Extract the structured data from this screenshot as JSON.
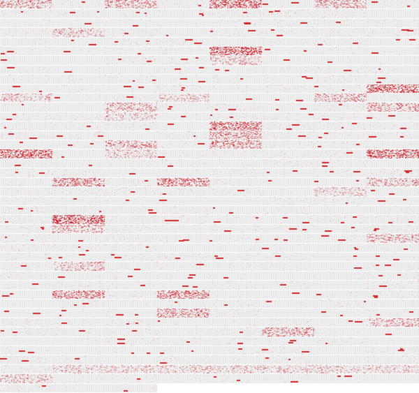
{
  "chart_data": {
    "type": "heatmap",
    "title": "",
    "grid": {
      "columns": 8,
      "rows": 42
    },
    "colors": {
      "background": "#e9e9e9",
      "stripe_light": "#f3f3f3",
      "row_gap": "#ffffff",
      "mark": "#d42a2a",
      "dense_mark": "#c40f1a"
    },
    "last_row_filled_columns": 3,
    "dense_blocks": [
      {
        "row": 0,
        "col": 0,
        "intensity": 0.5
      },
      {
        "row": 0,
        "col": 2,
        "intensity": 0.5
      },
      {
        "row": 0,
        "col": 4,
        "intensity": 0.8
      },
      {
        "row": 0,
        "col": 6,
        "intensity": 0.5
      },
      {
        "row": 3,
        "col": 1,
        "intensity": 0.35
      },
      {
        "row": 5,
        "col": 4,
        "intensity": 0.9
      },
      {
        "row": 6,
        "col": 4,
        "intensity": 0.35
      },
      {
        "row": 9,
        "col": 7,
        "intensity": 0.9
      },
      {
        "row": 10,
        "col": 0,
        "intensity": 0.35
      },
      {
        "row": 10,
        "col": 3,
        "intensity": 0.3
      },
      {
        "row": 10,
        "col": 6,
        "intensity": 0.5
      },
      {
        "row": 11,
        "col": 7,
        "intensity": 0.5
      },
      {
        "row": 11,
        "col": 2,
        "intensity": 0.45
      },
      {
        "row": 12,
        "col": 2,
        "intensity": 0.3
      },
      {
        "row": 13,
        "col": 4,
        "intensity": 0.8
      },
      {
        "row": 14,
        "col": 4,
        "intensity": 0.6
      },
      {
        "row": 15,
        "col": 2,
        "intensity": 0.5
      },
      {
        "row": 15,
        "col": 4,
        "intensity": 0.6
      },
      {
        "row": 16,
        "col": 2,
        "intensity": 0.3
      },
      {
        "row": 16,
        "col": 0,
        "intensity": 0.9
      },
      {
        "row": 16,
        "col": 7,
        "intensity": 0.9
      },
      {
        "row": 19,
        "col": 1,
        "intensity": 0.7
      },
      {
        "row": 19,
        "col": 3,
        "intensity": 0.7
      },
      {
        "row": 19,
        "col": 7,
        "intensity": 0.45
      },
      {
        "row": 20,
        "col": 6,
        "intensity": 0.3
      },
      {
        "row": 23,
        "col": 1,
        "intensity": 0.95
      },
      {
        "row": 24,
        "col": 1,
        "intensity": 0.45
      },
      {
        "row": 25,
        "col": 7,
        "intensity": 0.45
      },
      {
        "row": 28,
        "col": 1,
        "intensity": 0.4
      },
      {
        "row": 31,
        "col": 1,
        "intensity": 0.7
      },
      {
        "row": 31,
        "col": 3,
        "intensity": 0.7
      },
      {
        "row": 33,
        "col": 3,
        "intensity": 0.6
      },
      {
        "row": 34,
        "col": 7,
        "intensity": 0.45
      },
      {
        "row": 35,
        "col": 5,
        "intensity": 0.55
      },
      {
        "row": 39,
        "col": 1,
        "intensity": 0.3
      },
      {
        "row": 39,
        "col": 2,
        "intensity": 0.3
      },
      {
        "row": 39,
        "col": 3,
        "intensity": 0.3
      },
      {
        "row": 39,
        "col": 4,
        "intensity": 0.3
      },
      {
        "row": 39,
        "col": 5,
        "intensity": 0.3
      },
      {
        "row": 39,
        "col": 6,
        "intensity": 0.3
      },
      {
        "row": 39,
        "col": 7,
        "intensity": 0.3
      },
      {
        "row": 40,
        "col": 0,
        "intensity": 0.35
      }
    ],
    "sparse_mark_density": 0.04
  }
}
